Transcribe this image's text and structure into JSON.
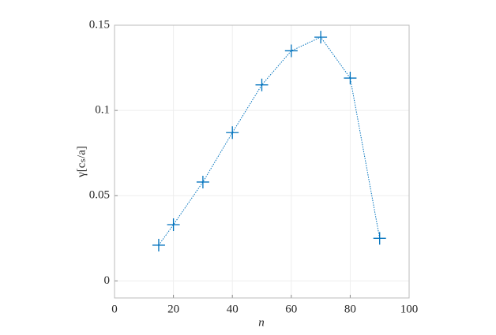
{
  "chart_data": {
    "type": "line",
    "xlabel": "n",
    "ylabel": "γ[cₛ/a]",
    "x": [
      15,
      20,
      30,
      40,
      50,
      60,
      70,
      80,
      90
    ],
    "series": [
      {
        "color": "#0072bd",
        "values": [
          0.021,
          0.033,
          0.058,
          0.087,
          0.115,
          0.135,
          0.143,
          0.119,
          0.025
        ]
      }
    ],
    "xlim": [
      0,
      100
    ],
    "xticks": [
      0,
      20,
      40,
      60,
      80,
      100
    ],
    "ylim": [
      -0.01,
      0.15
    ],
    "yticks": [
      0,
      0.05,
      0.1,
      0.15
    ],
    "grid": true
  }
}
